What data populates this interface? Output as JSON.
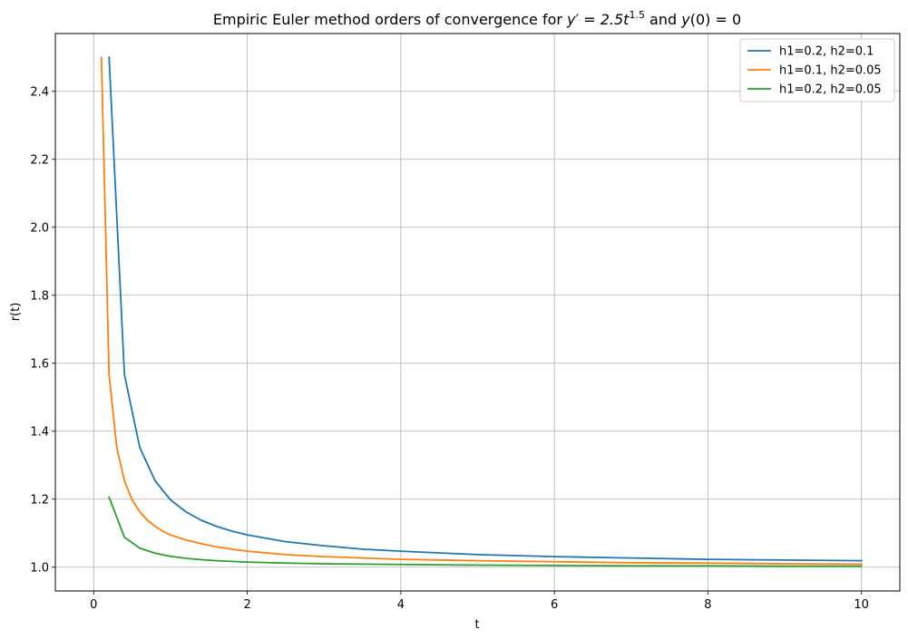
{
  "chart_data": {
    "type": "line",
    "title": {
      "prefix": "Empiric Euler method orders of convergence for ",
      "eq1_lhs": "y′ = 2.5",
      "eq1_var": "t",
      "eq1_exp": "1.5",
      "mid": " and ",
      "eq2_func": "y",
      "eq2_rest": "(0) = 0"
    },
    "xlabel": "t",
    "ylabel": "r(t)",
    "xlim": [
      -0.5,
      10.5
    ],
    "ylim": [
      0.93,
      2.57
    ],
    "xticks": [
      0,
      2,
      4,
      6,
      8,
      10
    ],
    "xtick_labels": [
      "0",
      "2",
      "4",
      "6",
      "8",
      "10"
    ],
    "yticks": [
      1.0,
      1.2,
      1.4,
      1.6,
      1.8,
      2.0,
      2.2,
      2.4
    ],
    "ytick_labels": [
      "1.0",
      "1.2",
      "1.4",
      "1.6",
      "1.8",
      "2.0",
      "2.2",
      "2.4"
    ],
    "grid": true,
    "legend_position": "top-right",
    "series": [
      {
        "name": "h1=0.2, h2=0.1",
        "color": "#1f77b4",
        "x": [
          0.2,
          0.4,
          0.6,
          0.8,
          1.0,
          1.2,
          1.4,
          1.6,
          1.8,
          2.0,
          2.5,
          3.0,
          3.5,
          4.0,
          5.0,
          6.0,
          7.0,
          8.0,
          9.0,
          10.0
        ],
        "y": [
          2.5,
          1.567,
          1.352,
          1.254,
          1.198,
          1.163,
          1.138,
          1.12,
          1.106,
          1.095,
          1.075,
          1.063,
          1.053,
          1.047,
          1.037,
          1.031,
          1.027,
          1.023,
          1.021,
          1.019
        ]
      },
      {
        "name": "h1=0.1, h2=0.05",
        "color": "#ff7f0e",
        "x": [
          0.1,
          0.2,
          0.3,
          0.4,
          0.5,
          0.6,
          0.7,
          0.8,
          0.9,
          1.0,
          1.2,
          1.4,
          1.6,
          1.8,
          2.0,
          2.5,
          3.0,
          3.5,
          4.0,
          5.0,
          6.0,
          7.0,
          8.0,
          9.0,
          10.0
        ],
        "y": [
          2.5,
          1.567,
          1.352,
          1.254,
          1.198,
          1.163,
          1.138,
          1.12,
          1.106,
          1.095,
          1.08,
          1.069,
          1.06,
          1.053,
          1.047,
          1.037,
          1.031,
          1.027,
          1.023,
          1.019,
          1.016,
          1.013,
          1.012,
          1.01,
          1.009
        ]
      },
      {
        "name": "h1=0.2, h2=0.05",
        "color": "#2ca02c",
        "x": [
          0.2,
          0.4,
          0.6,
          0.8,
          1.0,
          1.2,
          1.4,
          1.6,
          1.8,
          2.0,
          2.5,
          3.0,
          3.5,
          4.0,
          5.0,
          6.0,
          7.0,
          8.0,
          9.0,
          10.0
        ],
        "y": [
          1.206,
          1.088,
          1.056,
          1.041,
          1.032,
          1.026,
          1.022,
          1.019,
          1.017,
          1.015,
          1.012,
          1.01,
          1.009,
          1.008,
          1.006,
          1.005,
          1.004,
          1.004,
          1.003,
          1.003
        ]
      }
    ]
  }
}
